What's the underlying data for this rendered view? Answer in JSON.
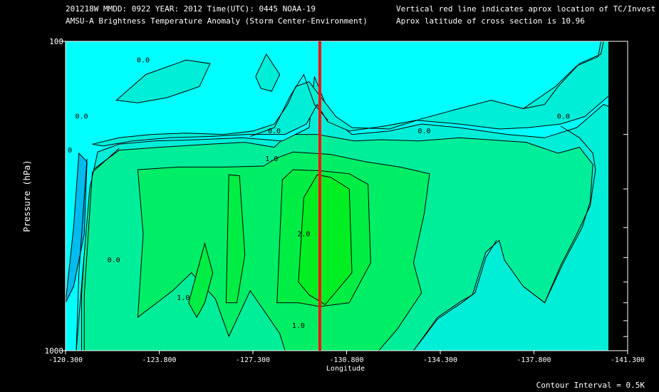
{
  "header": {
    "line1_left": "201218W  MMDD: 0922 YEAR: 2012 Time(UTC): 0445 NOAA-19",
    "line2_left": "AMSU-A Brightness Temperature Anomaly (Storm Center-Environment)",
    "line1_right": "Vertical red line indicates aprox location of TC/Invest",
    "line2_right": "Aprox latitude of cross section is 10.96"
  },
  "footer": {
    "contour_interval": "Contour Interval = 0.5K"
  },
  "colors": {
    "background": "#000000",
    "level_neg1": "#00bbee",
    "level_neg0_5": "#00ffff",
    "level_0": "#00eed8",
    "level_0_5": "#00ee99",
    "level_1": "#00ee66",
    "level_1_5": "#00ee44",
    "level_2": "#00ee22",
    "storm_line": "#ff1010",
    "contour": "#000000"
  },
  "chart_data": {
    "type": "contour",
    "title": "AMSU-A Brightness Temperature Anomaly (Storm Center-Environment)",
    "xlabel": "Longitude",
    "ylabel": "Pressure (hPa)",
    "x_range": [
      -120.3,
      -141.3
    ],
    "y_range": [
      100,
      1000
    ],
    "y_scale": "log",
    "x_ticks": [
      "-120.300",
      "-123.800",
      "-127.300",
      "-130.800",
      "-134.300",
      "-137.800",
      "-141.300"
    ],
    "y_tick_labels": [
      "100",
      "1000"
    ],
    "y_minor_ticks": [
      200,
      300,
      400,
      500,
      600,
      700,
      800,
      900
    ],
    "storm_longitude": -129.8,
    "contour_interval_K": 0.5,
    "contour_labels": [
      {
        "text": "0.0",
        "lon": -123.2,
        "p": 115
      },
      {
        "text": "0.0",
        "lon": -120.9,
        "p": 175
      },
      {
        "text": "0.0",
        "lon": -120.3,
        "p": 225
      },
      {
        "text": "0.0",
        "lon": -128.1,
        "p": 195
      },
      {
        "text": "0.0",
        "lon": -133.7,
        "p": 195
      },
      {
        "text": "0.0",
        "lon": -138.9,
        "p": 175
      },
      {
        "text": "0.0",
        "lon": -122.1,
        "p": 510
      },
      {
        "text": "1.0",
        "lon": -128.0,
        "p": 240
      },
      {
        "text": "2.0",
        "lon": -129.2,
        "p": 420
      },
      {
        "text": "1.0",
        "lon": -124.7,
        "p": 675
      },
      {
        "text": "1.0",
        "lon": -129.0,
        "p": 830
      }
    ],
    "levels": [
      {
        "value": 0.5,
        "polygon": [
          [
            -120.9,
            1000
          ],
          [
            -120.9,
            660
          ],
          [
            -121.2,
            265
          ],
          [
            -122.3,
            225
          ],
          [
            -123.8,
            220
          ],
          [
            -125.7,
            215
          ],
          [
            -127.0,
            212
          ],
          [
            -128.1,
            220
          ],
          [
            -128.6,
            200
          ],
          [
            -129.7,
            200
          ],
          [
            -131.1,
            210
          ],
          [
            -132.1,
            208
          ],
          [
            -133.5,
            210
          ],
          [
            -135.0,
            205
          ],
          [
            -137.5,
            212
          ],
          [
            -138.7,
            230
          ],
          [
            -139.5,
            220
          ],
          [
            -140.0,
            250
          ],
          [
            -139.9,
            330
          ],
          [
            -139.6,
            400
          ],
          [
            -138.9,
            520
          ],
          [
            -138.2,
            700
          ],
          [
            -137.4,
            620
          ],
          [
            -136.7,
            510
          ],
          [
            -136.5,
            440
          ],
          [
            -136.0,
            480
          ],
          [
            -135.5,
            660
          ],
          [
            -135.1,
            690
          ],
          [
            -134.2,
            780
          ],
          [
            -133.3,
            1000
          ]
        ]
      },
      {
        "value": 1.0,
        "polygon": [
          [
            -123.0,
            780
          ],
          [
            -123.2,
            420
          ],
          [
            -123.0,
            260
          ],
          [
            -124.5,
            255
          ],
          [
            -126.3,
            255
          ],
          [
            -127.7,
            253
          ],
          [
            -128.2,
            238
          ],
          [
            -128.8,
            228
          ],
          [
            -130.2,
            232
          ],
          [
            -131.5,
            245
          ],
          [
            -132.8,
            255
          ],
          [
            -133.9,
            268
          ],
          [
            -133.7,
            360
          ],
          [
            -133.3,
            520
          ],
          [
            -133.6,
            650
          ],
          [
            -132.7,
            850
          ],
          [
            -132.0,
            1000
          ],
          [
            -128.5,
            1000
          ],
          [
            -128.3,
            880
          ],
          [
            -127.2,
            640
          ],
          [
            -126.4,
            900
          ],
          [
            -125.9,
            680
          ],
          [
            -125.0,
            560
          ],
          [
            -124.3,
            640
          ]
        ]
      },
      {
        "value": 1.5,
        "polygon": [
          [
            -124.9,
            700
          ],
          [
            -125.5,
            450
          ],
          [
            -125.8,
            560
          ],
          [
            -125.5,
            700
          ],
          [
            -125.2,
            780
          ]
        ]
      },
      {
        "value": 1.5,
        "polygon": [
          [
            -126.3,
            700
          ],
          [
            -126.4,
            270
          ],
          [
            -126.8,
            272
          ],
          [
            -127.0,
            490
          ],
          [
            -126.7,
            700
          ]
        ]
      },
      {
        "value": 1.5,
        "polygon": [
          [
            -128.2,
            700
          ],
          [
            -128.4,
            280
          ],
          [
            -128.8,
            260
          ],
          [
            -129.8,
            262
          ],
          [
            -130.9,
            268
          ],
          [
            -131.6,
            290
          ],
          [
            -131.7,
            520
          ],
          [
            -130.9,
            700
          ],
          [
            -129.8,
            720
          ],
          [
            -129.0,
            700
          ]
        ]
      },
      {
        "value": 2.0,
        "polygon": [
          [
            -129.0,
            600
          ],
          [
            -129.2,
            320
          ],
          [
            -129.7,
            270
          ],
          [
            -130.2,
            275
          ],
          [
            -130.9,
            300
          ],
          [
            -131.0,
            560
          ],
          [
            -130.0,
            710
          ],
          [
            -129.4,
            660
          ]
        ]
      },
      {
        "value": -0.5,
        "polygon": [
          [
            -120.3,
            1000
          ],
          [
            -120.3,
            100
          ],
          [
            -142.0,
            100
          ],
          [
            -142.0,
            160
          ],
          [
            -141.2,
            170
          ],
          [
            -140.4,
            160
          ],
          [
            -139.4,
            190
          ],
          [
            -138.2,
            205
          ],
          [
            -136.8,
            200
          ],
          [
            -135.0,
            190
          ],
          [
            -133.6,
            185
          ],
          [
            -132.4,
            195
          ],
          [
            -131.0,
            200
          ],
          [
            -130.2,
            175
          ],
          [
            -129.6,
            130
          ],
          [
            -129.4,
            190
          ],
          [
            -128.4,
            210
          ],
          [
            -126.9,
            205
          ],
          [
            -125.2,
            208
          ],
          [
            -123.6,
            210
          ],
          [
            -122.3,
            215
          ],
          [
            -121.5,
            228
          ],
          [
            -121.2,
            300
          ],
          [
            -120.7,
            1000
          ]
        ]
      },
      {
        "value": 0.0,
        "polygon": [
          [
            -121.3,
            215
          ],
          [
            -122.3,
            205
          ],
          [
            -123.5,
            200
          ],
          [
            -124.8,
            198
          ],
          [
            -126.2,
            200
          ],
          [
            -127.3,
            195
          ],
          [
            -128.1,
            185
          ],
          [
            -128.6,
            160
          ],
          [
            -128.9,
            140
          ],
          [
            -129.4,
            135
          ],
          [
            -129.8,
            150
          ],
          [
            -130.4,
            175
          ],
          [
            -131.0,
            190
          ],
          [
            -132.4,
            192
          ],
          [
            -133.6,
            178
          ],
          [
            -135.0,
            165
          ],
          [
            -136.2,
            155
          ],
          [
            -137.4,
            165
          ],
          [
            -138.6,
            140
          ],
          [
            -139.4,
            120
          ],
          [
            -140.2,
            112
          ],
          [
            -140.3,
            100
          ],
          [
            -142.0,
            100
          ],
          [
            -142.0,
            155
          ],
          [
            -141.5,
            155
          ],
          [
            -140.6,
            150
          ],
          [
            -139.7,
            175
          ],
          [
            -138.8,
            185
          ],
          [
            -137.6,
            190
          ],
          [
            -136.5,
            192
          ],
          [
            -135.0,
            185
          ],
          [
            -133.4,
            180
          ],
          [
            -132.2,
            188
          ],
          [
            -130.9,
            195
          ],
          [
            -130.1,
            182
          ],
          [
            -129.7,
            160
          ],
          [
            -129.3,
            185
          ],
          [
            -128.5,
            200
          ],
          [
            -127.1,
            200
          ],
          [
            -125.7,
            203
          ],
          [
            -124.2,
            205
          ],
          [
            -122.8,
            210
          ],
          [
            -121.7,
            218
          ]
        ]
      },
      {
        "value": 0.0,
        "polygon": [
          [
            -122.2,
            155
          ],
          [
            -123.3,
            128
          ],
          [
            -124.8,
            115
          ],
          [
            -125.7,
            118
          ],
          [
            -125.3,
            140
          ],
          [
            -124.1,
            152
          ],
          [
            -123.0,
            158
          ]
        ]
      },
      {
        "value": 0.0,
        "polygon": [
          [
            -127.4,
            130
          ],
          [
            -127.8,
            110
          ],
          [
            -128.3,
            128
          ],
          [
            -128.0,
            145
          ],
          [
            -127.6,
            142
          ]
        ]
      },
      {
        "value": -1.0,
        "polygon": [
          [
            -120.3,
            700
          ],
          [
            -120.6,
            400
          ],
          [
            -120.8,
            230
          ],
          [
            -121.1,
            245
          ],
          [
            -121.0,
            420
          ],
          [
            -120.6,
            620
          ]
        ]
      }
    ],
    "contour_lines": [
      [
        [
          -121.0,
          1000
        ],
        [
          -121.0,
          660
        ],
        [
          -121.3,
          265
        ],
        [
          -122.3,
          222
        ]
      ],
      [
        [
          -120.7,
          1000
        ],
        [
          -120.8,
          560
        ],
        [
          -121.1,
          240
        ]
      ],
      [
        [
          -127.2,
          203
        ],
        [
          -128.1,
          190
        ],
        [
          -128.7,
          150
        ],
        [
          -129.2,
          128
        ],
        [
          -129.6,
          160
        ],
        [
          -130.1,
          180
        ]
      ],
      [
        [
          -137.4,
          165
        ],
        [
          -138.2,
          160
        ],
        [
          -138.7,
          140
        ],
        [
          -139.5,
          118
        ],
        [
          -140.3,
          110
        ],
        [
          -140.4,
          100
        ]
      ],
      [
        [
          -138.8,
          188
        ],
        [
          -139.5,
          205
        ],
        [
          -140.0,
          230
        ],
        [
          -140.1,
          260
        ],
        [
          -139.9,
          340
        ],
        [
          -139.4,
          420
        ],
        [
          -138.8,
          530
        ],
        [
          -138.2,
          700
        ],
        [
          -137.4,
          620
        ]
      ],
      [
        [
          -136.4,
          440
        ],
        [
          -136.0,
          500
        ],
        [
          -135.6,
          650
        ],
        [
          -135.1,
          700
        ],
        [
          -134.2,
          790
        ],
        [
          -133.3,
          1000
        ]
      ]
    ]
  }
}
